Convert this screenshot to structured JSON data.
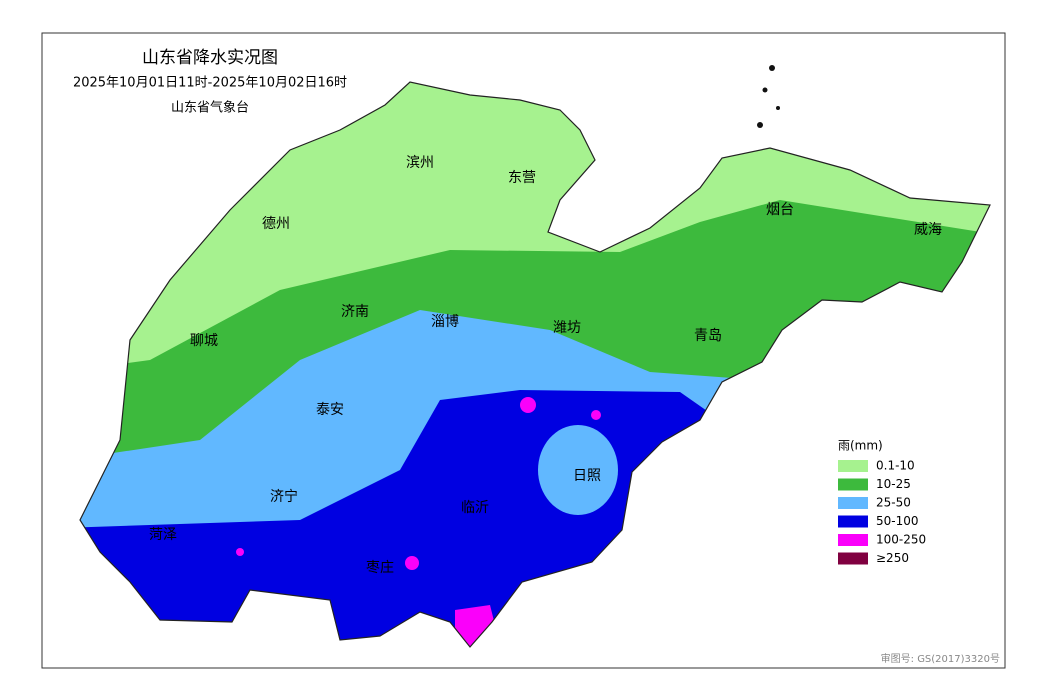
{
  "map": {
    "title": "山东省降水实况图",
    "subtitle": "2025年10月01日11时-2025年10月02日16时",
    "agency": "山东省气象台",
    "cities": [
      "滨州",
      "东营",
      "德州",
      "烟台",
      "威海",
      "济南",
      "淄博",
      "潍坊",
      "青岛",
      "聊城",
      "泰安",
      "日照",
      "济宁",
      "临沂",
      "菏泽",
      "枣庄"
    ],
    "legend": {
      "title": "雨(mm)",
      "entries": [
        {
          "label": "0.1-10",
          "color": "#a6f28f"
        },
        {
          "label": "10-25",
          "color": "#3dba3d"
        },
        {
          "label": "25-50",
          "color": "#61b8ff"
        },
        {
          "label": "50-100",
          "color": "#0000e1"
        },
        {
          "label": "100-250",
          "color": "#fa00fa"
        },
        {
          "label": "≥250",
          "color": "#800040"
        }
      ]
    },
    "review_number": "审图号: GS(2017)3320号"
  }
}
